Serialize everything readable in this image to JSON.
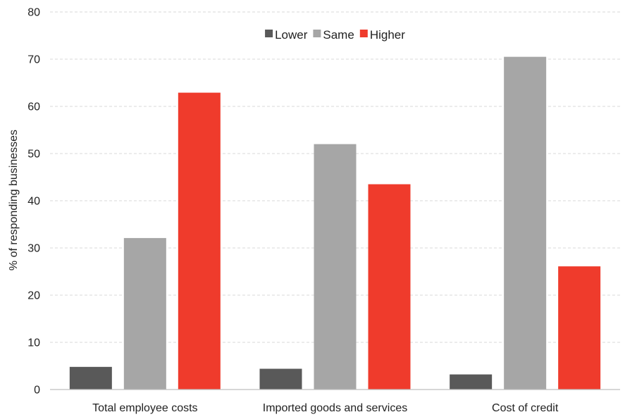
{
  "chart_data": {
    "type": "bar",
    "title": "",
    "xlabel": "",
    "ylabel": "% of responding businesses",
    "categories": [
      "Total employee costs",
      "Imported goods and services",
      "Cost of credit"
    ],
    "series": [
      {
        "name": "Lower",
        "color": "#595959",
        "values": [
          4.8,
          4.4,
          3.2
        ]
      },
      {
        "name": "Same",
        "color": "#a6a6a6",
        "values": [
          32.1,
          52.0,
          70.5
        ]
      },
      {
        "name": "Higher",
        "color": "#ef3b2c",
        "values": [
          62.9,
          43.5,
          26.1
        ]
      }
    ],
    "ylim": [
      0,
      80
    ],
    "yticks": [
      0,
      10,
      20,
      30,
      40,
      50,
      60,
      70,
      80
    ],
    "grid": true,
    "legend_position": "top-center"
  }
}
